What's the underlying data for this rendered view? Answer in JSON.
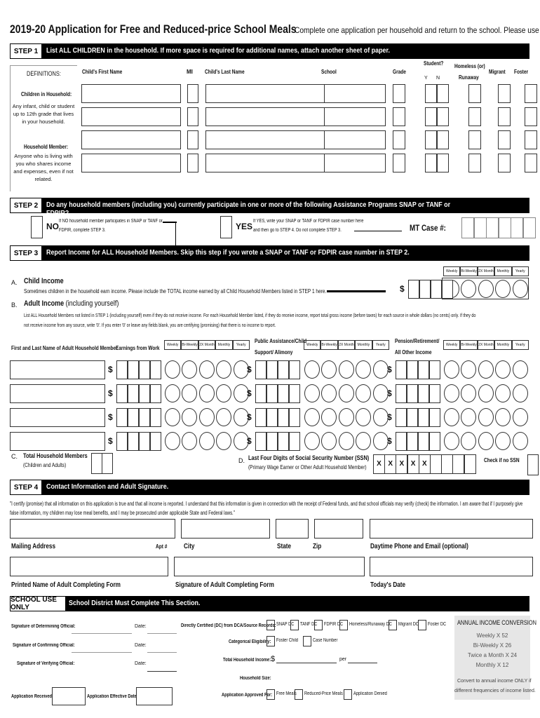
{
  "title": "2019-20 Application for Free and Reduced-price School Meals",
  "subtitle": "Complete one application per household and return to the school.  Please use a pen.",
  "step1": {
    "label": "STEP 1",
    "text": "List ALL CHILDREN in the household.  If more space is required for additional names, attach another sheet of paper.",
    "definitions": "DEFINITIONS:",
    "h_first": "Child's First Name",
    "h_mi": "MI",
    "h_last": "Child's Last Name",
    "h_school": "School",
    "h_grade": "Grade",
    "h_student": "Student?",
    "h_y": "Y",
    "h_n": "N",
    "h_homeless": "Homeless (or)",
    "h_runaway": "Runaway",
    "h_migrant": "Migrant",
    "h_foster": "Foster",
    "def1_title": "Children in Household:",
    "def1_text": "Any infant, child or student up to 12th grade that lives in your household.",
    "def2_title": "Household Member:",
    "def2_text": "Anyone who is living with you who shares income and expenses, even if not related."
  },
  "step2": {
    "label": "STEP 2",
    "text": "Do any household members (including you) currently participate in one or more of the following Assistance Programs   SNAP or TANF or FDPIR?",
    "no": "NO",
    "no_text1": "If NO household member participates in SNAP or TANF or",
    "no_text2": "FDPIR, complete STEP 3.",
    "yes": "YES",
    "yes_text1": "If YES, write your SNAP or TANF or FDPIR case number here",
    "yes_text2": "and then go to STEP 4. Do not complete STEP 3.",
    "case": "MT Case #:"
  },
  "step3": {
    "label": "STEP 3",
    "text": "Report Income for ALL Household Members.  Skip this step if you wrote a SNAP or TANF or FDPIR case number in STEP 2.",
    "freq": [
      "Weekly",
      "Bi-Weekly",
      "2X Month",
      "Monthly",
      "Yearly"
    ],
    "a": "A.",
    "a_title": "Child Income",
    "a_text": "Sometimes children in the household earn income. Please include the TOTAL income earned by all Child Household Members listed in STEP 1 here.",
    "dollar": "$",
    "b": "B.",
    "b_title": "Adult Income",
    "b_title2": "(including yourself)",
    "b_text1": "List ALL Household Members not listed in STEP 1 (including yourself) even if they do not receive income. For each Household Member listed, if they do receive income, report total gross income (before taxes) for each source in whole dollars (no cents) only. If they do",
    "b_text2": "not receive income from any source, write '0'. If you enter '0' or leave any fields blank, you are certifying (promising) that there is no income to report.",
    "h_name": "First and Last Name of Adult Household Member",
    "h_earn": "Earnings from Work",
    "h_pub1": "Public Assistance/Child",
    "h_pub2": "Support/ Alimony",
    "h_pen1": "Pension/Retirement/",
    "h_pen2": "All Other Income",
    "c": "C.",
    "c_title": "Total Household Members",
    "c_sub": "(Children and Adults)",
    "d": "D.",
    "d_title": "Last Four Digits of Social Security Number (SSN)",
    "d_sub": "(Primary Wage Earner or Other Adult Household Member)",
    "x": "X",
    "no_ssn": "Check if no SSN"
  },
  "step4": {
    "label": "STEP 4",
    "text": "Contact Information and Adult Signature.",
    "certify": "\"I certify (promise) that all information on this application is true and that all income is reported. I understand that this information is given in connection with the receipt of Federal funds, and that school officials may verify (check) the information. I am aware that if I purposely give false information, my children may lose meal benefits, and I may be prosecuted under applicable State and Federal laws.\"",
    "mailing": "Mailing Address",
    "apt": "Apt #",
    "city": "City",
    "state": "State",
    "zip": "Zip",
    "phone": "Daytime Phone and Email (optional)",
    "printed": "Printed Name of Adult Completing Form",
    "signature": "Signature of Adult Completing Form",
    "date": "Today's Date"
  },
  "school": {
    "label": "SCHOOL USE ONLY",
    "text": "School District Must Complete This Section.",
    "sig_det": "Signature of Determining Official:",
    "sig_conf": "Signature of Confirming Official:",
    "sig_ver": "Signature of Verifying Official:",
    "date": "Date:",
    "received": "Application Received:",
    "effective": "Application Effective Date:",
    "dc": "Directly Certified (DC) from DCA/Source Records:",
    "dc_opts": [
      "SNAP DC",
      "TANF DC",
      "FDPIR DC",
      "Homeless/Runaway DC",
      "Migrant DC",
      "Foster DC"
    ],
    "cat": "Categorical Eligibility:",
    "cat_opts": [
      "Foster Child",
      "Case Number"
    ],
    "total": "Total Household Income:",
    "dollar": "$",
    "per": "per",
    "size": "Household Size:",
    "approved": "Application Approved For:",
    "approved_opts": [
      "Free Meals",
      "Reduced-Price Meals",
      "Application Denied"
    ],
    "conv_title": "ANNUAL INCOME CONVERSION",
    "conv": [
      "Weekly X 52",
      "Bi-Weekly X 26",
      "Twice a Month X 24",
      "Monthly X 12"
    ],
    "conv_note1": "Convert to annual income ONLY if",
    "conv_note2": "different frequencies of income listed."
  }
}
